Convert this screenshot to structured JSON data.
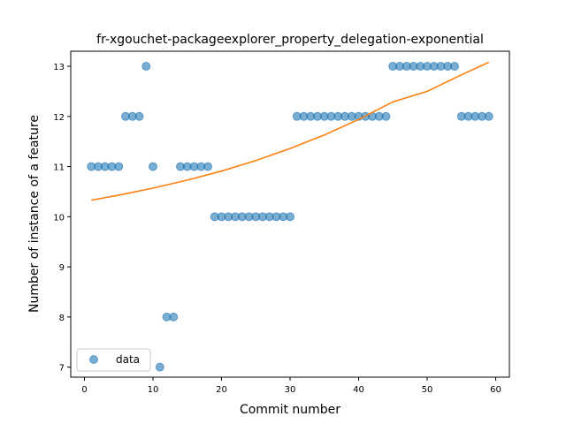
{
  "chart_data": {
    "type": "scatter",
    "title": "fr-xgouchet-packageexplorer_property_delegation-exponential",
    "xlabel": "Commit number",
    "ylabel": "Number of instance of a feature",
    "xlim": [
      -2,
      62
    ],
    "ylim": [
      6.8,
      13.3
    ],
    "xticks": [
      "0",
      "10",
      "20",
      "30",
      "40",
      "50",
      "60"
    ],
    "yticks": [
      "7",
      "8",
      "9",
      "10",
      "11",
      "12",
      "13"
    ],
    "legend": {
      "placement": "lower-left",
      "entries": [
        "data"
      ]
    },
    "colors": {
      "data": "#1f77b4",
      "fit": "#ff7f0e"
    },
    "series": [
      {
        "name": "data",
        "kind": "scatter",
        "x": [
          1,
          2,
          3,
          4,
          5,
          6,
          7,
          8,
          9,
          10,
          11,
          12,
          13,
          14,
          15,
          16,
          17,
          18,
          19,
          20,
          21,
          22,
          23,
          24,
          25,
          26,
          27,
          28,
          29,
          30,
          31,
          32,
          33,
          34,
          35,
          36,
          37,
          38,
          39,
          40,
          41,
          42,
          43,
          44,
          45,
          46,
          47,
          48,
          49,
          50,
          51,
          52,
          53,
          54,
          55,
          56,
          57,
          58,
          59
        ],
        "y": [
          11,
          11,
          11,
          11,
          11,
          12,
          12,
          12,
          13,
          11,
          7,
          8,
          8,
          11,
          11,
          11,
          11,
          11,
          10,
          10,
          10,
          10,
          10,
          10,
          10,
          10,
          10,
          10,
          10,
          10,
          12,
          12,
          12,
          12,
          12,
          12,
          12,
          12,
          12,
          12,
          12,
          12,
          12,
          12,
          13,
          13,
          13,
          13,
          13,
          13,
          13,
          13,
          13,
          13,
          12,
          12,
          12,
          12,
          12
        ]
      },
      {
        "kind": "line",
        "x": [
          1,
          5,
          10,
          15,
          20,
          25,
          30,
          35,
          40,
          45,
          50,
          55,
          59
        ],
        "y": [
          10.33,
          10.43,
          10.57,
          10.73,
          10.91,
          11.12,
          11.36,
          11.63,
          11.94,
          12.29,
          12.5,
          12.83,
          13.08
        ]
      }
    ]
  }
}
